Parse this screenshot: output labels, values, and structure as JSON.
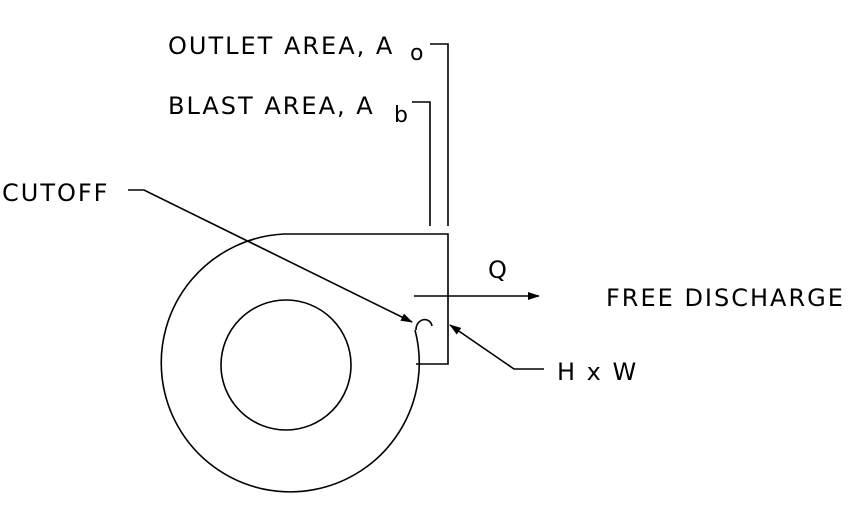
{
  "labels": {
    "outlet_area": "OUTLET AREA, A",
    "outlet_area_sub": "o",
    "blast_area": "BLAST AREA, A",
    "blast_area_sub": "b",
    "cutoff": "CUTOFF",
    "flow": "Q",
    "free_discharge": "FREE DISCHARGE",
    "dimensions": "H x W"
  }
}
